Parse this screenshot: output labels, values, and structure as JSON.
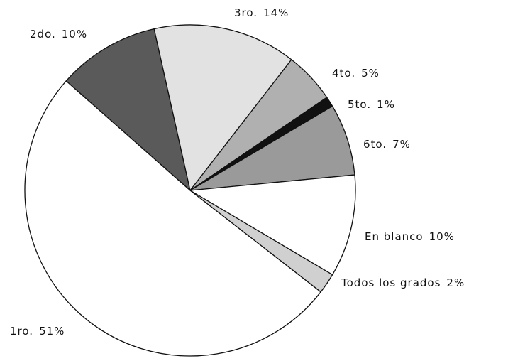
{
  "chart_data": {
    "type": "pie",
    "categories": [
      "2do.",
      "3ro.",
      "4to.",
      "5to.",
      "6to.",
      "En blanco",
      "Todos los grados",
      "1ro."
    ],
    "values": [
      10,
      14,
      5,
      1,
      7,
      10,
      2,
      51
    ],
    "value_labels": [
      "10%",
      "14%",
      "5%",
      "1%",
      "7%",
      "10%",
      "2%",
      "51%"
    ],
    "colors": [
      "#5a5a5a",
      "#e2e2e2",
      "#b0b0b0",
      "#111111",
      "#9a9a9a",
      "#ffffff",
      "#d0d0d0",
      "#ffffff"
    ]
  }
}
